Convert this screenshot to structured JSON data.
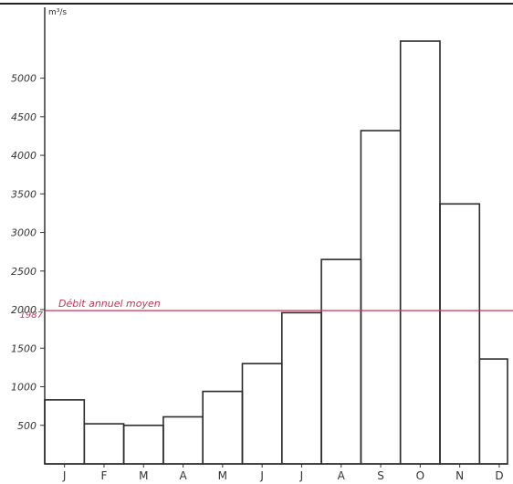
{
  "chart_data": {
    "type": "bar",
    "ylabel": "m³/s",
    "categories": [
      "J",
      "F",
      "M",
      "A",
      "M",
      "J",
      "J",
      "A",
      "S",
      "O",
      "N",
      "D"
    ],
    "values": [
      830,
      520,
      500,
      610,
      940,
      1300,
      1960,
      2650,
      4320,
      5480,
      3370,
      1360
    ],
    "yticks": [
      500,
      1000,
      1500,
      2000,
      2500,
      3000,
      3500,
      4000,
      4500,
      5000
    ],
    "ytick_labels": [
      "500",
      "1000",
      "1500",
      "2000",
      "2500",
      "3000",
      "3500",
      "4000",
      "4500",
      "5000"
    ],
    "ylim": [
      0,
      5800
    ],
    "reference_line": {
      "label": "Débit annuel moyen",
      "value_label": "1987",
      "value": 1987,
      "color": "#c0365a"
    },
    "grid": false,
    "legend": "none"
  }
}
